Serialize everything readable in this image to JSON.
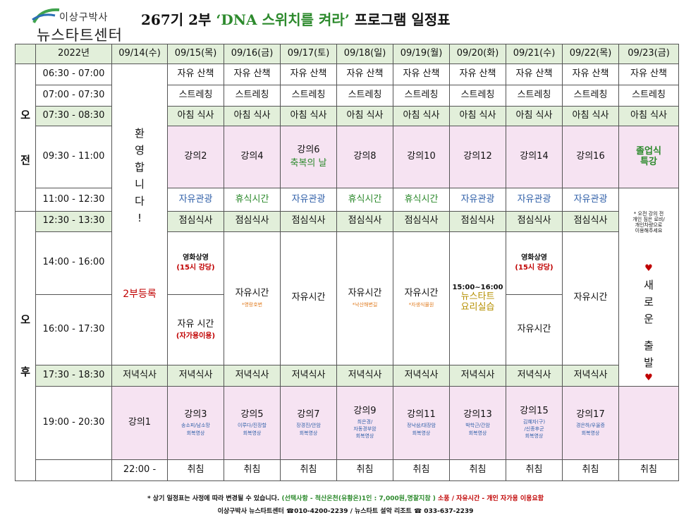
{
  "logo": {
    "line1": "이상구박사",
    "line2": "뉴스타트센터"
  },
  "title": {
    "pre": "267기 2부",
    "highlight": "‘DNA 스위치를 켜라’",
    "post": "프로그램 일정표"
  },
  "header": {
    "year": "2022년",
    "dates": [
      "09/14(수)",
      "09/15(목)",
      "09/16(금)",
      "09/17(토)",
      "09/18(일)",
      "09/19(월)",
      "09/20(화)",
      "09/21(수)",
      "09/22(목)",
      "09/23(금)"
    ]
  },
  "periods": {
    "am": [
      "오",
      "전"
    ],
    "pm": [
      "오",
      "후"
    ]
  },
  "times": [
    "06:30 - 07:00",
    "07:00 - 07:30",
    "07:30 - 08:30",
    "09:30 - 11:00",
    "11:00 - 12:30",
    "12:30 - 13:30",
    "14:00 - 16:00",
    "16:00 - 17:30",
    "17:30 - 18:30",
    "19:00 - 20:30",
    "22:00 -"
  ],
  "welcome": [
    "환",
    "영",
    "합",
    "니",
    "다",
    "!"
  ],
  "register": "2부등록",
  "walk": "자유 산책",
  "stretch": "스트레칭",
  "breakfast": "아침 식사",
  "lunch": "점심식사",
  "dinner": "저녁식사",
  "sleep": "취침",
  "morning_lectures": [
    "강의2",
    "강의4",
    "강의6",
    "강의8",
    "강의10",
    "강의12",
    "강의14",
    "강의16"
  ],
  "blessing": "축복의 날",
  "graduation": [
    "졸업식",
    "특강"
  ],
  "late_morning": [
    "자유관광",
    "휴식시간",
    "자유관광",
    "휴식시간",
    "휴식시간",
    "자유관광",
    "자유관광",
    "자유관광"
  ],
  "note": [
    "* 오전 강의 전",
    "개인 짐은 로비/",
    "개인차량으로",
    "이용해주세요"
  ],
  "new_start": [
    "새",
    "로",
    "운",
    "",
    "출",
    "발"
  ],
  "heart": "♥",
  "movie": {
    "title": "영화상영",
    "sub": "(15시 강당)"
  },
  "free_time": "자유시간",
  "free_time_spaced": "자유 시간",
  "own_car": "(자가용이용)",
  "sub_notes": {
    "d16": "*영랑호변",
    "d18": "*낙산해변길",
    "d19": "*자생식물원"
  },
  "cooking": {
    "time": "15:00~16:00",
    "title": "뉴스타트",
    "title2": "요리실습"
  },
  "evening_lectures": [
    {
      "name": "강의1",
      "lines": []
    },
    {
      "name": "강의3",
      "lines": [
        "송소피/남소망",
        "회복영상"
      ]
    },
    {
      "name": "강의5",
      "lines": [
        "이루다/진장할",
        "회복영상"
      ]
    },
    {
      "name": "강의7",
      "lines": [
        "장경진/안암",
        "회복영상"
      ]
    },
    {
      "name": "강의9",
      "lines": [
        "최은경/",
        "자동경부암",
        "회복영상"
      ]
    },
    {
      "name": "강의11",
      "lines": [
        "정낙삼/대장암",
        "회복영상"
      ]
    },
    {
      "name": "강의13",
      "lines": [
        "박학근/간암",
        "회복영상"
      ]
    },
    {
      "name": "강의15",
      "lines": [
        "김혜자(구)",
        "/신종후군",
        "회복영상"
      ]
    },
    {
      "name": "강의17",
      "lines": [
        "경은하/우울증",
        "회복영상"
      ]
    }
  ],
  "footer": {
    "line1_a": "* 상기 일정표는 사정에 따라 변경될 수 있습니다.",
    "line1_b": "(선택사항 - 척산온천(유황온)1인 : 7,000원,명찰지참 )",
    "line1_c": "소풍 / 자유시간 - 개인 자가용 이용요함",
    "line2": "이상구박사 뉴스타트센터 ☎010-4200-2239 /  뉴스타트 설악 리조트 ☎ 033-637-2239"
  },
  "colors": {
    "green_row": "#e2efda",
    "pink_cell": "#f6e3f2",
    "highlight_green": "#2d8a2d",
    "blue_text": "#2f5fa8",
    "red_text": "#c00000"
  }
}
